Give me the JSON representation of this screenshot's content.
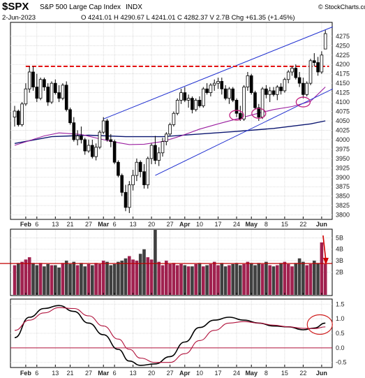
{
  "header": {
    "symbol": "$SPX",
    "name": "S&P 500 Large Cap Index",
    "exchange": "INDX",
    "date": "2-Jun-2023",
    "quote": "O 4241.01  H 4290.67  L 4241.01  C 4282.37  V 2.7B  Chg +61.35 (+1.45%)",
    "watermark": "© StockCharts.com"
  },
  "colors": {
    "up": "#ffffff",
    "down": "#000000",
    "wick": "#000000",
    "channel": "#1f2fd0",
    "ma_short": "#9b1fa0",
    "ma_long": "#0b1670",
    "resistance": "#e10000",
    "vol_up": "#a0214f",
    "vol_down": "#404040",
    "vol_avg": "#c00000",
    "macd": "#000000",
    "signal": "#b0103a",
    "zero": "#b0103a",
    "highlight": "#c02080",
    "arrow": "#d00000"
  },
  "chart_data": [
    {
      "type": "candlestick",
      "title": "S&P 500 Large Cap Index",
      "ylim": [
        3790,
        4310
      ],
      "yticks": [
        3800,
        3825,
        3850,
        3875,
        3900,
        3925,
        3950,
        3975,
        4000,
        4025,
        4050,
        4075,
        4100,
        4125,
        4150,
        4175,
        4200,
        4225,
        4250,
        4275
      ],
      "xticks": [
        {
          "i": 3,
          "label": "Feb"
        },
        {
          "i": 6,
          "label": "6"
        },
        {
          "i": 11,
          "label": "13"
        },
        {
          "i": 15,
          "label": "21"
        },
        {
          "i": 20,
          "label": "27"
        },
        {
          "i": 24,
          "label": "Mar"
        },
        {
          "i": 27,
          "label": "6"
        },
        {
          "i": 32,
          "label": "13"
        },
        {
          "i": 37,
          "label": "20"
        },
        {
          "i": 42,
          "label": "27"
        },
        {
          "i": 46,
          "label": "Apr"
        },
        {
          "i": 50,
          "label": "10"
        },
        {
          "i": 55,
          "label": "17"
        },
        {
          "i": 60,
          "label": "24"
        },
        {
          "i": 64,
          "label": "May"
        },
        {
          "i": 68,
          "label": "8"
        },
        {
          "i": 73,
          "label": "15"
        },
        {
          "i": 78,
          "label": "22"
        },
        {
          "i": 83,
          "label": "Jun"
        }
      ],
      "candles": [
        {
          "o": 4060,
          "h": 4090,
          "l": 4035,
          "c": 4076
        },
        {
          "o": 4076,
          "h": 4080,
          "l": 4035,
          "c": 4040
        },
        {
          "o": 4040,
          "h": 4100,
          "l": 4035,
          "c": 4095
        },
        {
          "o": 4095,
          "h": 4150,
          "l": 4090,
          "c": 4135
        },
        {
          "o": 4135,
          "h": 4195,
          "l": 4125,
          "c": 4180
        },
        {
          "o": 4180,
          "h": 4195,
          "l": 4130,
          "c": 4140
        },
        {
          "o": 4140,
          "h": 4175,
          "l": 4100,
          "c": 4110
        },
        {
          "o": 4110,
          "h": 4165,
          "l": 4105,
          "c": 4160
        },
        {
          "o": 4160,
          "h": 4165,
          "l": 4130,
          "c": 4140
        },
        {
          "o": 4140,
          "h": 4150,
          "l": 4090,
          "c": 4100
        },
        {
          "o": 4100,
          "h": 4155,
          "l": 4095,
          "c": 4150
        },
        {
          "o": 4150,
          "h": 4160,
          "l": 4120,
          "c": 4125
        },
        {
          "o": 4125,
          "h": 4145,
          "l": 4100,
          "c": 4110
        },
        {
          "o": 4110,
          "h": 4150,
          "l": 4105,
          "c": 4145
        },
        {
          "o": 4145,
          "h": 4155,
          "l": 4075,
          "c": 4080
        },
        {
          "o": 4080,
          "h": 4085,
          "l": 4040,
          "c": 4045
        },
        {
          "o": 4045,
          "h": 4060,
          "l": 3995,
          "c": 4000
        },
        {
          "o": 4000,
          "h": 4025,
          "l": 3985,
          "c": 4010
        },
        {
          "o": 4010,
          "h": 4035,
          "l": 3990,
          "c": 4000
        },
        {
          "o": 4000,
          "h": 4005,
          "l": 3960,
          "c": 3970
        },
        {
          "o": 3970,
          "h": 4000,
          "l": 3965,
          "c": 3985
        },
        {
          "o": 3985,
          "h": 4000,
          "l": 3950,
          "c": 3955
        },
        {
          "o": 3955,
          "h": 3990,
          "l": 3945,
          "c": 3980
        },
        {
          "o": 3980,
          "h": 4025,
          "l": 3975,
          "c": 4020
        },
        {
          "o": 4020,
          "h": 4060,
          "l": 4015,
          "c": 4050
        },
        {
          "o": 4050,
          "h": 4055,
          "l": 3995,
          "c": 4000
        },
        {
          "o": 4000,
          "h": 4015,
          "l": 3980,
          "c": 3995
        },
        {
          "o": 3995,
          "h": 4000,
          "l": 3935,
          "c": 3940
        },
        {
          "o": 3940,
          "h": 3945,
          "l": 3900,
          "c": 3905
        },
        {
          "o": 3905,
          "h": 3910,
          "l": 3850,
          "c": 3860
        },
        {
          "o": 3860,
          "h": 3880,
          "l": 3810,
          "c": 3820
        },
        {
          "o": 3820,
          "h": 3890,
          "l": 3805,
          "c": 3880
        },
        {
          "o": 3880,
          "h": 3920,
          "l": 3865,
          "c": 3905
        },
        {
          "o": 3905,
          "h": 3950,
          "l": 3890,
          "c": 3940
        },
        {
          "o": 3940,
          "h": 3945,
          "l": 3900,
          "c": 3915
        },
        {
          "o": 3915,
          "h": 3935,
          "l": 3870,
          "c": 3880
        },
        {
          "o": 3880,
          "h": 3955,
          "l": 3870,
          "c": 3950
        },
        {
          "o": 3950,
          "h": 3990,
          "l": 3935,
          "c": 3985
        },
        {
          "o": 3985,
          "h": 4010,
          "l": 3935,
          "c": 3945
        },
        {
          "o": 3945,
          "h": 3980,
          "l": 3930,
          "c": 3965
        },
        {
          "o": 3965,
          "h": 4005,
          "l": 3955,
          "c": 3995
        },
        {
          "o": 3995,
          "h": 4020,
          "l": 3985,
          "c": 4015
        },
        {
          "o": 4015,
          "h": 4045,
          "l": 4010,
          "c": 4040
        },
        {
          "o": 4040,
          "h": 4075,
          "l": 4035,
          "c": 4070
        },
        {
          "o": 4070,
          "h": 4110,
          "l": 4065,
          "c": 4105
        },
        {
          "o": 4105,
          "h": 4135,
          "l": 4095,
          "c": 4125
        },
        {
          "o": 4125,
          "h": 4140,
          "l": 4100,
          "c": 4105
        },
        {
          "o": 4105,
          "h": 4120,
          "l": 4085,
          "c": 4110
        },
        {
          "o": 4110,
          "h": 4115,
          "l": 4070,
          "c": 4080
        },
        {
          "o": 4080,
          "h": 4110,
          "l": 4075,
          "c": 4105
        },
        {
          "o": 4105,
          "h": 4115,
          "l": 4085,
          "c": 4090
        },
        {
          "o": 4090,
          "h": 4140,
          "l": 4085,
          "c": 4135
        },
        {
          "o": 4135,
          "h": 4150,
          "l": 4120,
          "c": 4125
        },
        {
          "o": 4125,
          "h": 4150,
          "l": 4115,
          "c": 4145
        },
        {
          "o": 4145,
          "h": 4160,
          "l": 4130,
          "c": 4150
        },
        {
          "o": 4150,
          "h": 4165,
          "l": 4135,
          "c": 4155
        },
        {
          "o": 4155,
          "h": 4165,
          "l": 4120,
          "c": 4135
        },
        {
          "o": 4135,
          "h": 4145,
          "l": 4105,
          "c": 4110
        },
        {
          "o": 4110,
          "h": 4140,
          "l": 4095,
          "c": 4135
        },
        {
          "o": 4135,
          "h": 4140,
          "l": 4100,
          "c": 4105
        },
        {
          "o": 4105,
          "h": 4110,
          "l": 4060,
          "c": 4070
        },
        {
          "o": 4070,
          "h": 4090,
          "l": 4050,
          "c": 4055
        },
        {
          "o": 4055,
          "h": 4145,
          "l": 4050,
          "c": 4140
        },
        {
          "o": 4140,
          "h": 4180,
          "l": 4130,
          "c": 4170
        },
        {
          "o": 4170,
          "h": 4175,
          "l": 4120,
          "c": 4125
        },
        {
          "o": 4125,
          "h": 4130,
          "l": 4080,
          "c": 4085
        },
        {
          "o": 4085,
          "h": 4095,
          "l": 4050,
          "c": 4060
        },
        {
          "o": 4060,
          "h": 4140,
          "l": 4055,
          "c": 4135
        },
        {
          "o": 4135,
          "h": 4145,
          "l": 4110,
          "c": 4120
        },
        {
          "o": 4120,
          "h": 4140,
          "l": 4100,
          "c": 4130
        },
        {
          "o": 4130,
          "h": 4140,
          "l": 4115,
          "c": 4120
        },
        {
          "o": 4120,
          "h": 4145,
          "l": 4105,
          "c": 4140
        },
        {
          "o": 4140,
          "h": 4150,
          "l": 4120,
          "c": 4130
        },
        {
          "o": 4130,
          "h": 4165,
          "l": 4125,
          "c": 4160
        },
        {
          "o": 4160,
          "h": 4185,
          "l": 4150,
          "c": 4180
        },
        {
          "o": 4180,
          "h": 4195,
          "l": 4170,
          "c": 4190
        },
        {
          "o": 4190,
          "h": 4200,
          "l": 4160,
          "c": 4165
        },
        {
          "o": 4165,
          "h": 4180,
          "l": 4140,
          "c": 4150
        },
        {
          "o": 4150,
          "h": 4165,
          "l": 4110,
          "c": 4120
        },
        {
          "o": 4120,
          "h": 4155,
          "l": 4115,
          "c": 4150
        },
        {
          "o": 4150,
          "h": 4215,
          "l": 4145,
          "c": 4210
        },
        {
          "o": 4210,
          "h": 4230,
          "l": 4195,
          "c": 4205
        },
        {
          "o": 4205,
          "h": 4220,
          "l": 4170,
          "c": 4180
        },
        {
          "o": 4180,
          "h": 4235,
          "l": 4175,
          "c": 4225
        },
        {
          "o": 4241,
          "h": 4291,
          "l": 4241,
          "c": 4282
        }
      ],
      "ma_short": [
        [
          0,
          3985
        ],
        [
          8,
          4010
        ],
        [
          12,
          4018
        ],
        [
          18,
          4014
        ],
        [
          24,
          4000
        ],
        [
          28,
          3992
        ],
        [
          31,
          3987
        ],
        [
          35,
          3988
        ],
        [
          40,
          3995
        ],
        [
          45,
          4010
        ],
        [
          50,
          4028
        ],
        [
          55,
          4042
        ],
        [
          60,
          4055
        ],
        [
          65,
          4068
        ],
        [
          70,
          4080
        ],
        [
          75,
          4088
        ],
        [
          80,
          4102
        ],
        [
          84,
          4140
        ]
      ],
      "ma_long": [
        [
          0,
          3990
        ],
        [
          10,
          4008
        ],
        [
          20,
          4012
        ],
        [
          30,
          4008
        ],
        [
          40,
          4008
        ],
        [
          50,
          4015
        ],
        [
          60,
          4022
        ],
        [
          70,
          4030
        ],
        [
          80,
          4042
        ],
        [
          84,
          4050
        ]
      ],
      "channel": [
        {
          "from": [
            24,
            4055
          ],
          "to": [
            86,
            4300
          ]
        },
        {
          "from": [
            38,
            3905
          ],
          "to": [
            86,
            4135
          ]
        }
      ],
      "resistance": 4195,
      "highlights": [
        [
          60,
          4065
        ],
        [
          66,
          4070
        ],
        [
          78,
          4100
        ]
      ]
    },
    {
      "type": "bar",
      "title": "Volume",
      "ylim": [
        0,
        5.7
      ],
      "yticks": [
        {
          "v": 2,
          "label": "2B"
        },
        {
          "v": 3,
          "label": "3B"
        },
        {
          "v": 4,
          "label": "4B"
        },
        {
          "v": 5,
          "label": "5B"
        }
      ],
      "average": 2.75,
      "values": [
        2.6,
        2.8,
        2.9,
        3.1,
        3.3,
        2.8,
        2.6,
        2.8,
        2.5,
        2.7,
        2.6,
        2.6,
        2.4,
        2.8,
        3.0,
        2.7,
        2.9,
        2.6,
        2.8,
        2.5,
        2.7,
        2.6,
        2.8,
        2.7,
        3.0,
        2.9,
        2.6,
        2.7,
        2.9,
        3.0,
        3.2,
        3.4,
        3.1,
        3.0,
        3.6,
        4.0,
        3.3,
        3.1,
        5.8,
        2.9,
        2.6,
        3.0,
        2.7,
        2.8,
        2.6,
        2.7,
        2.6,
        2.5,
        2.5,
        2.7,
        2.8,
        2.5,
        2.6,
        2.7,
        2.9,
        2.6,
        2.8,
        2.5,
        2.6,
        2.7,
        2.8,
        2.6,
        2.7,
        2.9,
        2.8,
        2.6,
        2.8,
        2.7,
        2.9,
        2.6,
        2.5,
        2.6,
        2.8,
        2.9,
        2.7,
        2.5,
        2.8,
        3.2,
        2.9,
        2.6,
        2.7,
        3.0,
        2.8,
        4.6,
        2.7
      ],
      "up": [
        true,
        false,
        true,
        true,
        true,
        false,
        false,
        true,
        false,
        false,
        true,
        false,
        false,
        true,
        false,
        false,
        false,
        true,
        false,
        false,
        true,
        false,
        true,
        true,
        true,
        false,
        false,
        false,
        false,
        false,
        false,
        true,
        true,
        true,
        false,
        false,
        true,
        true,
        false,
        true,
        true,
        true,
        true,
        true,
        true,
        true,
        false,
        true,
        false,
        true,
        false,
        true,
        false,
        true,
        true,
        true,
        false,
        false,
        true,
        false,
        false,
        false,
        true,
        true,
        false,
        false,
        false,
        true,
        false,
        true,
        false,
        true,
        false,
        true,
        true,
        true,
        false,
        false,
        false,
        true,
        true,
        false,
        false,
        true,
        true
      ],
      "arrow_at": 83
    },
    {
      "type": "line",
      "title": "MACD",
      "ylim": [
        -0.65,
        1.65
      ],
      "yticks": [
        {
          "v": -0.5,
          "label": "-0.5"
        },
        {
          "v": 0,
          "label": "0.0"
        },
        {
          "v": 0.5,
          "label": "0.5"
        },
        {
          "v": 1,
          "label": "1.0"
        },
        {
          "v": 1.5,
          "label": "1.5"
        }
      ],
      "series": [
        {
          "role": "macd",
          "values": [
            [
              0,
              0.35
            ],
            [
              4,
              1.05
            ],
            [
              8,
              1.35
            ],
            [
              12,
              1.45
            ],
            [
              16,
              1.25
            ],
            [
              20,
              0.85
            ],
            [
              24,
              0.45
            ],
            [
              28,
              -0.05
            ],
            [
              31,
              -0.45
            ],
            [
              34,
              -0.6
            ],
            [
              38,
              -0.55
            ],
            [
              42,
              -0.3
            ],
            [
              46,
              0.2
            ],
            [
              50,
              0.7
            ],
            [
              54,
              0.95
            ],
            [
              58,
              1.05
            ],
            [
              62,
              0.95
            ],
            [
              66,
              0.85
            ],
            [
              70,
              0.75
            ],
            [
              74,
              0.72
            ],
            [
              78,
              0.62
            ],
            [
              81,
              0.68
            ],
            [
              84,
              0.85
            ]
          ]
        },
        {
          "role": "signal",
          "values": [
            [
              0,
              0.6
            ],
            [
              4,
              0.95
            ],
            [
              8,
              1.2
            ],
            [
              12,
              1.38
            ],
            [
              16,
              1.35
            ],
            [
              20,
              1.1
            ],
            [
              24,
              0.75
            ],
            [
              28,
              0.3
            ],
            [
              31,
              -0.05
            ],
            [
              34,
              -0.35
            ],
            [
              38,
              -0.5
            ],
            [
              42,
              -0.5
            ],
            [
              46,
              -0.2
            ],
            [
              50,
              0.25
            ],
            [
              54,
              0.6
            ],
            [
              58,
              0.85
            ],
            [
              62,
              0.9
            ],
            [
              66,
              0.85
            ],
            [
              70,
              0.78
            ],
            [
              74,
              0.72
            ],
            [
              78,
              0.67
            ],
            [
              81,
              0.66
            ],
            [
              84,
              0.72
            ]
          ]
        }
      ],
      "zero": 0
    }
  ]
}
